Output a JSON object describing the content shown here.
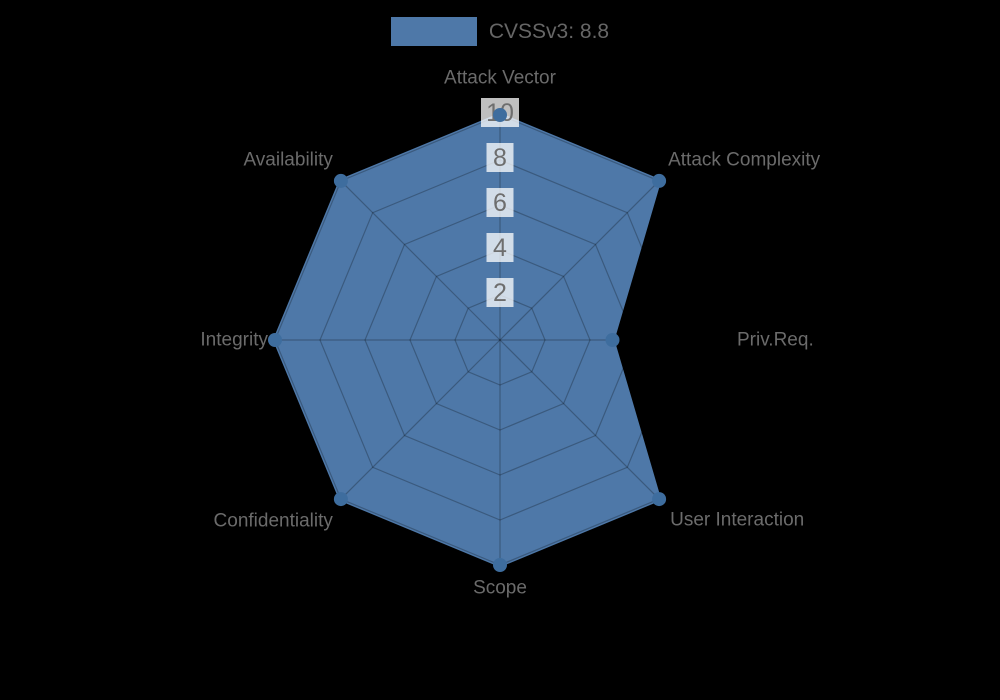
{
  "chart_data": {
    "type": "radar",
    "title": "",
    "categories": [
      "Attack Vector",
      "Attack Complexity",
      "Priv.Req.",
      "User Interaction",
      "Scope",
      "Confidentiality",
      "Integrity",
      "Availability"
    ],
    "series": [
      {
        "name": "CVSSv3: 8.8",
        "values": [
          10,
          10,
          5,
          10,
          10,
          10,
          10,
          10
        ]
      }
    ],
    "scale": {
      "min": 0,
      "max": 10,
      "ticks": [
        2,
        4,
        6,
        8,
        10
      ]
    },
    "legend_position": "top",
    "grid": true,
    "colors": {
      "fill": "#4e78a8",
      "stroke": "#4e78a8",
      "point": "#3e6d9e",
      "label": "#6b6b6b",
      "tick_text": "#6e6e6e",
      "tick_backdrop": "rgba(255,255,255,0.75)",
      "grid_line": "rgba(0,0,0,0.25)",
      "legend_text": "#666666",
      "background": "#000000"
    }
  },
  "legend": {
    "label": "CVSSv3: 8.8"
  }
}
